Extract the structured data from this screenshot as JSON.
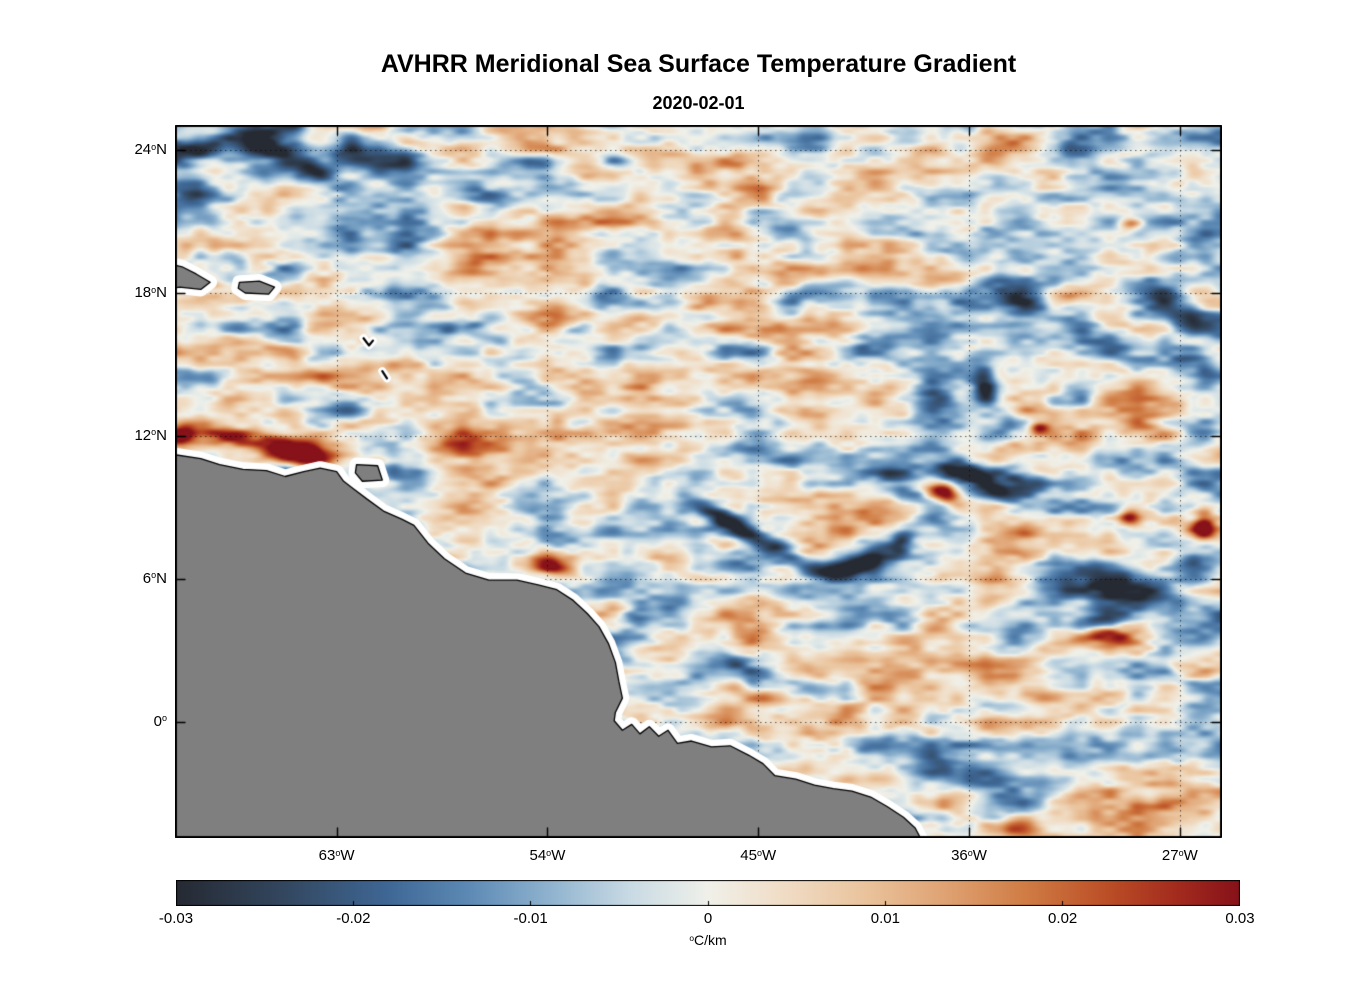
{
  "figure": {
    "title": "AVHRR Meridional Sea Surface Temperature Gradient",
    "subtitle": "2020-02-01"
  },
  "chart_data": {
    "type": "heatmap",
    "title": "AVHRR Meridional Sea Surface Temperature Gradient",
    "date": "2020-02-01",
    "variable": "Meridional sea surface temperature gradient",
    "units": "°C/km",
    "x_axis": {
      "range": [
        -69.9,
        -25.2
      ],
      "ticks": [
        {
          "value": -63,
          "label": "63°W"
        },
        {
          "value": -54,
          "label": "54°W"
        },
        {
          "value": -45,
          "label": "45°W"
        },
        {
          "value": -36,
          "label": "36°W"
        },
        {
          "value": -27,
          "label": "27°W"
        }
      ]
    },
    "y_axis": {
      "range": [
        -4.87,
        25.05
      ],
      "ticks": [
        {
          "value": 24,
          "label": "24°N"
        },
        {
          "value": 18,
          "label": "18°N"
        },
        {
          "value": 12,
          "label": "12°N"
        },
        {
          "value": 6,
          "label": "6°N"
        },
        {
          "value": 0,
          "label": "0°"
        }
      ]
    },
    "colorbar": {
      "min": -0.03,
      "max": 0.03,
      "label": "°C/km",
      "ticks": [
        {
          "value": -0.03,
          "label": "-0.03"
        },
        {
          "value": -0.02,
          "label": "-0.02"
        },
        {
          "value": -0.01,
          "label": "-0.01"
        },
        {
          "value": 0,
          "label": "0"
        },
        {
          "value": 0.01,
          "label": "0.01"
        },
        {
          "value": 0.02,
          "label": "0.02"
        },
        {
          "value": 0.03,
          "label": "0.03"
        }
      ]
    },
    "colormap": {
      "name": "balance-diverging",
      "stops": [
        {
          "t": -1.0,
          "color": "#262a33"
        },
        {
          "t": -0.8,
          "color": "#33475f"
        },
        {
          "t": -0.6,
          "color": "#3f6896"
        },
        {
          "t": -0.45,
          "color": "#5d8ab5"
        },
        {
          "t": -0.3,
          "color": "#8fb3cf"
        },
        {
          "t": -0.15,
          "color": "#c8dae4"
        },
        {
          "t": 0.0,
          "color": "#f0f1ea"
        },
        {
          "t": 0.15,
          "color": "#f0dcc4"
        },
        {
          "t": 0.3,
          "color": "#eac39c"
        },
        {
          "t": 0.45,
          "color": "#dfa272"
        },
        {
          "t": 0.6,
          "color": "#d07c44"
        },
        {
          "t": 0.75,
          "color": "#bc4f27"
        },
        {
          "t": 0.88,
          "color": "#a42c1e"
        },
        {
          "t": 1.0,
          "color": "#871219"
        }
      ]
    },
    "land_color": "#7f7f7f",
    "coast_halo_color": "#ffffff",
    "grid": {
      "style": "dotted",
      "color": "rgba(0,0,0,0.6)"
    },
    "noise": {
      "amplitude": 0.028,
      "octaves": [
        {
          "sx": 0.35,
          "sy": 0.9,
          "w": 0.5
        },
        {
          "sx": 0.8,
          "sy": 2.0,
          "w": 0.33
        },
        {
          "sx": 1.7,
          "sy": 4.2,
          "w": 0.17
        }
      ]
    },
    "features": [
      {
        "lon": -64.7,
        "lat": 11.35,
        "amp": 0.06,
        "sx": 1.05,
        "sy": 0.38,
        "rot": -6
      },
      {
        "lon": -67.2,
        "lat": 11.9,
        "amp": 0.02,
        "sx": 1.3,
        "sy": 0.35,
        "rot": -5
      },
      {
        "lon": -69.7,
        "lat": 11.95,
        "amp": 0.03,
        "sx": 0.45,
        "sy": 0.28,
        "rot": 0
      },
      {
        "lon": -57.8,
        "lat": 11.5,
        "amp": 0.013,
        "sx": 1.6,
        "sy": 0.5,
        "rot": -5
      },
      {
        "lon": -64.9,
        "lat": 10.45,
        "amp": -0.028,
        "sx": 0.5,
        "sy": 0.25,
        "rot": -15
      },
      {
        "lon": -66.9,
        "lat": 24.35,
        "amp": -0.03,
        "sx": 1.4,
        "sy": 0.55,
        "rot": 12
      },
      {
        "lon": -69.5,
        "lat": 24.0,
        "amp": -0.026,
        "sx": 0.9,
        "sy": 0.55,
        "rot": 0
      },
      {
        "lon": -64.3,
        "lat": 23.2,
        "amp": -0.022,
        "sx": 0.9,
        "sy": 0.4,
        "rot": -18
      },
      {
        "lon": -61.4,
        "lat": 23.8,
        "amp": -0.03,
        "sx": 1.3,
        "sy": 0.5,
        "rot": -8
      },
      {
        "lon": -69.4,
        "lat": 22.3,
        "amp": -0.024,
        "sx": 0.8,
        "sy": 0.5,
        "rot": 0
      },
      {
        "lon": -59.2,
        "lat": 24.9,
        "amp": -0.022,
        "sx": 1.0,
        "sy": 0.4,
        "rot": 0
      },
      {
        "lon": -57.0,
        "lat": 22.3,
        "amp": -0.024,
        "sx": 0.9,
        "sy": 0.4,
        "rot": -15
      },
      {
        "lon": -50.7,
        "lat": 23.4,
        "amp": -0.018,
        "sx": 0.9,
        "sy": 0.35,
        "rot": -12
      },
      {
        "lon": -53.0,
        "lat": 16.4,
        "amp": -0.016,
        "sx": 0.8,
        "sy": 0.35,
        "rot": 10
      },
      {
        "lon": -44.5,
        "lat": 21.0,
        "amp": -0.013,
        "sx": 1.0,
        "sy": 0.4,
        "rot": -10
      },
      {
        "lon": -47.3,
        "lat": 8.95,
        "amp": -0.022,
        "sx": 0.8,
        "sy": 0.3,
        "rot": -25
      },
      {
        "lon": -45.9,
        "lat": 8.15,
        "amp": -0.026,
        "sx": 0.9,
        "sy": 0.3,
        "rot": -25
      },
      {
        "lon": -44.4,
        "lat": 7.3,
        "amp": -0.028,
        "sx": 0.9,
        "sy": 0.28,
        "rot": -18
      },
      {
        "lon": -42.9,
        "lat": 6.5,
        "amp": -0.029,
        "sx": 0.9,
        "sy": 0.28,
        "rot": -8
      },
      {
        "lon": -41.5,
        "lat": 6.35,
        "amp": -0.027,
        "sx": 0.8,
        "sy": 0.28,
        "rot": 12
      },
      {
        "lon": -40.2,
        "lat": 6.9,
        "amp": -0.024,
        "sx": 0.65,
        "sy": 0.3,
        "rot": 30
      },
      {
        "lon": -38.9,
        "lat": 7.6,
        "amp": -0.024,
        "sx": 0.5,
        "sy": 0.32,
        "rot": 55
      },
      {
        "lon": -39.4,
        "lat": 10.2,
        "amp": -0.024,
        "sx": 1.0,
        "sy": 0.4,
        "rot": -12
      },
      {
        "lon": -37.0,
        "lat": 9.55,
        "amp": 0.042,
        "sx": 0.55,
        "sy": 0.26,
        "rot": -15
      },
      {
        "lon": -36.3,
        "lat": 10.35,
        "amp": -0.032,
        "sx": 0.95,
        "sy": 0.35,
        "rot": -18
      },
      {
        "lon": -35.0,
        "lat": 9.8,
        "amp": -0.026,
        "sx": 0.7,
        "sy": 0.3,
        "rot": -30
      },
      {
        "lon": -33.8,
        "lat": 10.1,
        "amp": -0.02,
        "sx": 0.8,
        "sy": 0.4,
        "rot": -20
      },
      {
        "lon": -35.3,
        "lat": 13.9,
        "amp": -0.026,
        "sx": 0.35,
        "sy": 0.75,
        "rot": 8
      },
      {
        "lon": -34.4,
        "lat": 12.7,
        "amp": -0.018,
        "sx": 0.4,
        "sy": 0.5,
        "rot": -20
      },
      {
        "lon": -33.0,
        "lat": 12.3,
        "amp": 0.026,
        "sx": 0.3,
        "sy": 0.22,
        "rot": 0
      },
      {
        "lon": -31.8,
        "lat": 6.2,
        "amp": -0.026,
        "sx": 1.6,
        "sy": 0.6,
        "rot": 5
      },
      {
        "lon": -28.7,
        "lat": 5.6,
        "amp": -0.032,
        "sx": 1.5,
        "sy": 0.55,
        "rot": -8
      },
      {
        "lon": -26.2,
        "lat": 6.7,
        "amp": -0.026,
        "sx": 1.0,
        "sy": 0.5,
        "rot": 0
      },
      {
        "lon": -30.4,
        "lat": 4.4,
        "amp": -0.02,
        "sx": 1.0,
        "sy": 0.4,
        "rot": 10
      },
      {
        "lon": -29.9,
        "lat": 3.6,
        "amp": 0.034,
        "sx": 0.7,
        "sy": 0.3,
        "rot": -10
      },
      {
        "lon": -26.0,
        "lat": 8.3,
        "amp": 0.028,
        "sx": 0.35,
        "sy": 0.45,
        "rot": 0
      },
      {
        "lon": -29.2,
        "lat": 8.6,
        "amp": 0.024,
        "sx": 0.3,
        "sy": 0.25,
        "rot": 0
      },
      {
        "lon": -29.1,
        "lat": 20.9,
        "amp": 0.024,
        "sx": 0.35,
        "sy": 0.22,
        "rot": 0
      },
      {
        "lon": -30.8,
        "lat": 16.2,
        "amp": -0.02,
        "sx": 1.3,
        "sy": 0.6,
        "rot": -15
      },
      {
        "lon": -27.6,
        "lat": 17.6,
        "amp": -0.022,
        "sx": 1.1,
        "sy": 0.5,
        "rot": -25
      },
      {
        "lon": -26.2,
        "lat": 14.8,
        "amp": -0.021,
        "sx": 0.9,
        "sy": 0.45,
        "rot": -30
      },
      {
        "lon": -33.6,
        "lat": 17.8,
        "amp": -0.016,
        "sx": 1.0,
        "sy": 0.4,
        "rot": -20
      },
      {
        "lon": -53.9,
        "lat": 6.6,
        "amp": 0.026,
        "sx": 0.6,
        "sy": 0.28,
        "rot": -15
      },
      {
        "lon": -42.8,
        "lat": 1.4,
        "amp": -0.019,
        "sx": 1.1,
        "sy": 0.35,
        "rot": -5
      },
      {
        "lon": -46.5,
        "lat": 3.0,
        "amp": -0.015,
        "sx": 0.8,
        "sy": 0.3,
        "rot": -20
      },
      {
        "lon": -50.3,
        "lat": 4.3,
        "amp": -0.014,
        "sx": 0.5,
        "sy": 0.3,
        "rot": 0
      },
      {
        "lon": -35.0,
        "lat": 0.9,
        "amp": -0.016,
        "sx": 1.0,
        "sy": 0.35,
        "rot": -10
      }
    ],
    "coastline": {
      "mainland": [
        [
          -70.5,
          11.3
        ],
        [
          -68.8,
          11.05
        ],
        [
          -68.0,
          10.8
        ],
        [
          -67.0,
          10.6
        ],
        [
          -66.0,
          10.55
        ],
        [
          -65.2,
          10.3
        ],
        [
          -64.4,
          10.5
        ],
        [
          -63.7,
          10.65
        ],
        [
          -63.0,
          10.5
        ],
        [
          -62.7,
          10.1
        ],
        [
          -62.3,
          9.8
        ],
        [
          -61.7,
          9.35
        ],
        [
          -61.0,
          8.85
        ],
        [
          -60.2,
          8.5
        ],
        [
          -59.7,
          8.25
        ],
        [
          -59.1,
          7.5
        ],
        [
          -58.4,
          6.85
        ],
        [
          -57.5,
          6.25
        ],
        [
          -56.5,
          5.95
        ],
        [
          -55.3,
          5.95
        ],
        [
          -54.4,
          5.75
        ],
        [
          -53.6,
          5.55
        ],
        [
          -52.9,
          5.1
        ],
        [
          -52.3,
          4.55
        ],
        [
          -51.8,
          4.0
        ],
        [
          -51.4,
          3.3
        ],
        [
          -51.1,
          2.5
        ],
        [
          -50.95,
          1.7
        ],
        [
          -50.8,
          1.0
        ],
        [
          -51.1,
          0.4
        ],
        [
          -51.15,
          0.05
        ],
        [
          -50.8,
          -0.35
        ],
        [
          -50.4,
          -0.1
        ],
        [
          -50.05,
          -0.5
        ],
        [
          -49.65,
          -0.2
        ],
        [
          -49.25,
          -0.6
        ],
        [
          -48.85,
          -0.35
        ],
        [
          -48.45,
          -0.9
        ],
        [
          -47.85,
          -0.8
        ],
        [
          -47.0,
          -1.05
        ],
        [
          -46.2,
          -1.0
        ],
        [
          -45.4,
          -1.4
        ],
        [
          -44.8,
          -1.75
        ],
        [
          -44.3,
          -2.25
        ],
        [
          -43.4,
          -2.4
        ],
        [
          -42.6,
          -2.65
        ],
        [
          -41.8,
          -2.8
        ],
        [
          -41.0,
          -2.9
        ],
        [
          -40.2,
          -3.15
        ],
        [
          -39.5,
          -3.55
        ],
        [
          -38.8,
          -4.0
        ],
        [
          -38.3,
          -4.45
        ],
        [
          -37.9,
          -5.2
        ],
        [
          -70.5,
          -5.2
        ]
      ],
      "islands": [
        [
          [
            -70.5,
            19.3
          ],
          [
            -69.6,
            19.1
          ],
          [
            -69.0,
            18.8
          ],
          [
            -68.4,
            18.45
          ],
          [
            -68.8,
            18.15
          ],
          [
            -69.7,
            18.25
          ],
          [
            -70.5,
            18.1
          ]
        ],
        [
          [
            -67.15,
            18.45
          ],
          [
            -66.3,
            18.5
          ],
          [
            -65.65,
            18.25
          ],
          [
            -65.9,
            17.95
          ],
          [
            -66.9,
            18.0
          ],
          [
            -67.2,
            18.2
          ]
        ],
        [
          [
            -62.15,
            10.8
          ],
          [
            -61.25,
            10.75
          ],
          [
            -61.05,
            10.15
          ],
          [
            -61.9,
            10.1
          ],
          [
            -62.2,
            10.45
          ]
        ]
      ],
      "island_marks": [
        [
          [
            -61.85,
            16.1
          ],
          [
            -61.62,
            15.8
          ],
          [
            -61.45,
            16.0
          ]
        ],
        [
          [
            -61.05,
            14.72
          ],
          [
            -60.85,
            14.42
          ]
        ]
      ]
    }
  }
}
